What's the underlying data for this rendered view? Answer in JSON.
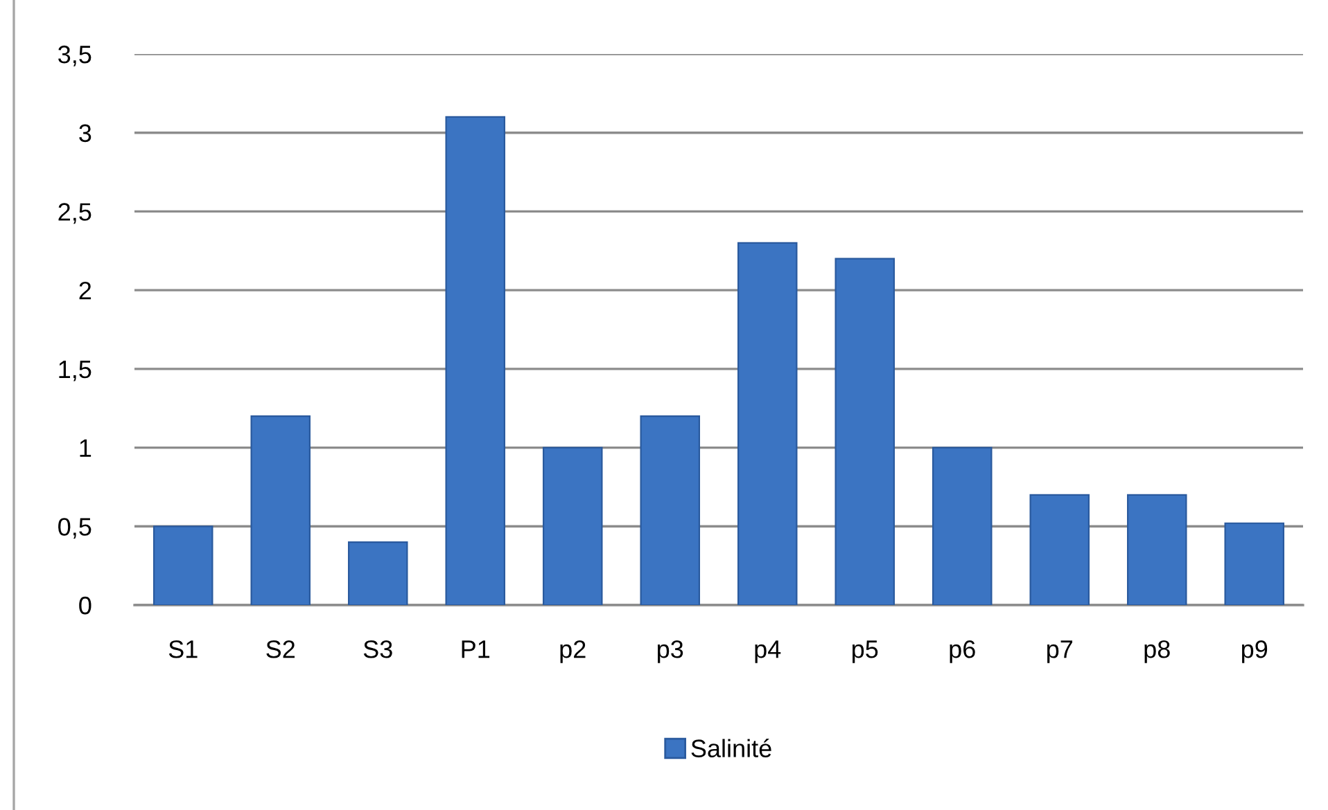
{
  "chart_data": {
    "type": "bar",
    "categories": [
      "S1",
      "S2",
      "S3",
      "P1",
      "p2",
      "p3",
      "p4",
      "p5",
      "p6",
      "p7",
      "p8",
      "p9"
    ],
    "series": [
      {
        "name": "Salinité",
        "color": "#3b74c2",
        "values": [
          0.5,
          1.2,
          0.4,
          3.1,
          1.0,
          1.2,
          2.3,
          2.2,
          1.0,
          0.7,
          0.7,
          0.52
        ]
      }
    ],
    "ylim": [
      0,
      3.5
    ],
    "yticks": [
      0,
      {
        "value": 0.5,
        "label": "0,5"
      },
      1,
      {
        "value": 1.5,
        "label": "1,5"
      },
      2,
      {
        "value": 2.5,
        "label": "2,5"
      },
      3,
      {
        "value": 3.5,
        "label": "3,5"
      }
    ],
    "grid": "y",
    "legend": "bottom"
  }
}
